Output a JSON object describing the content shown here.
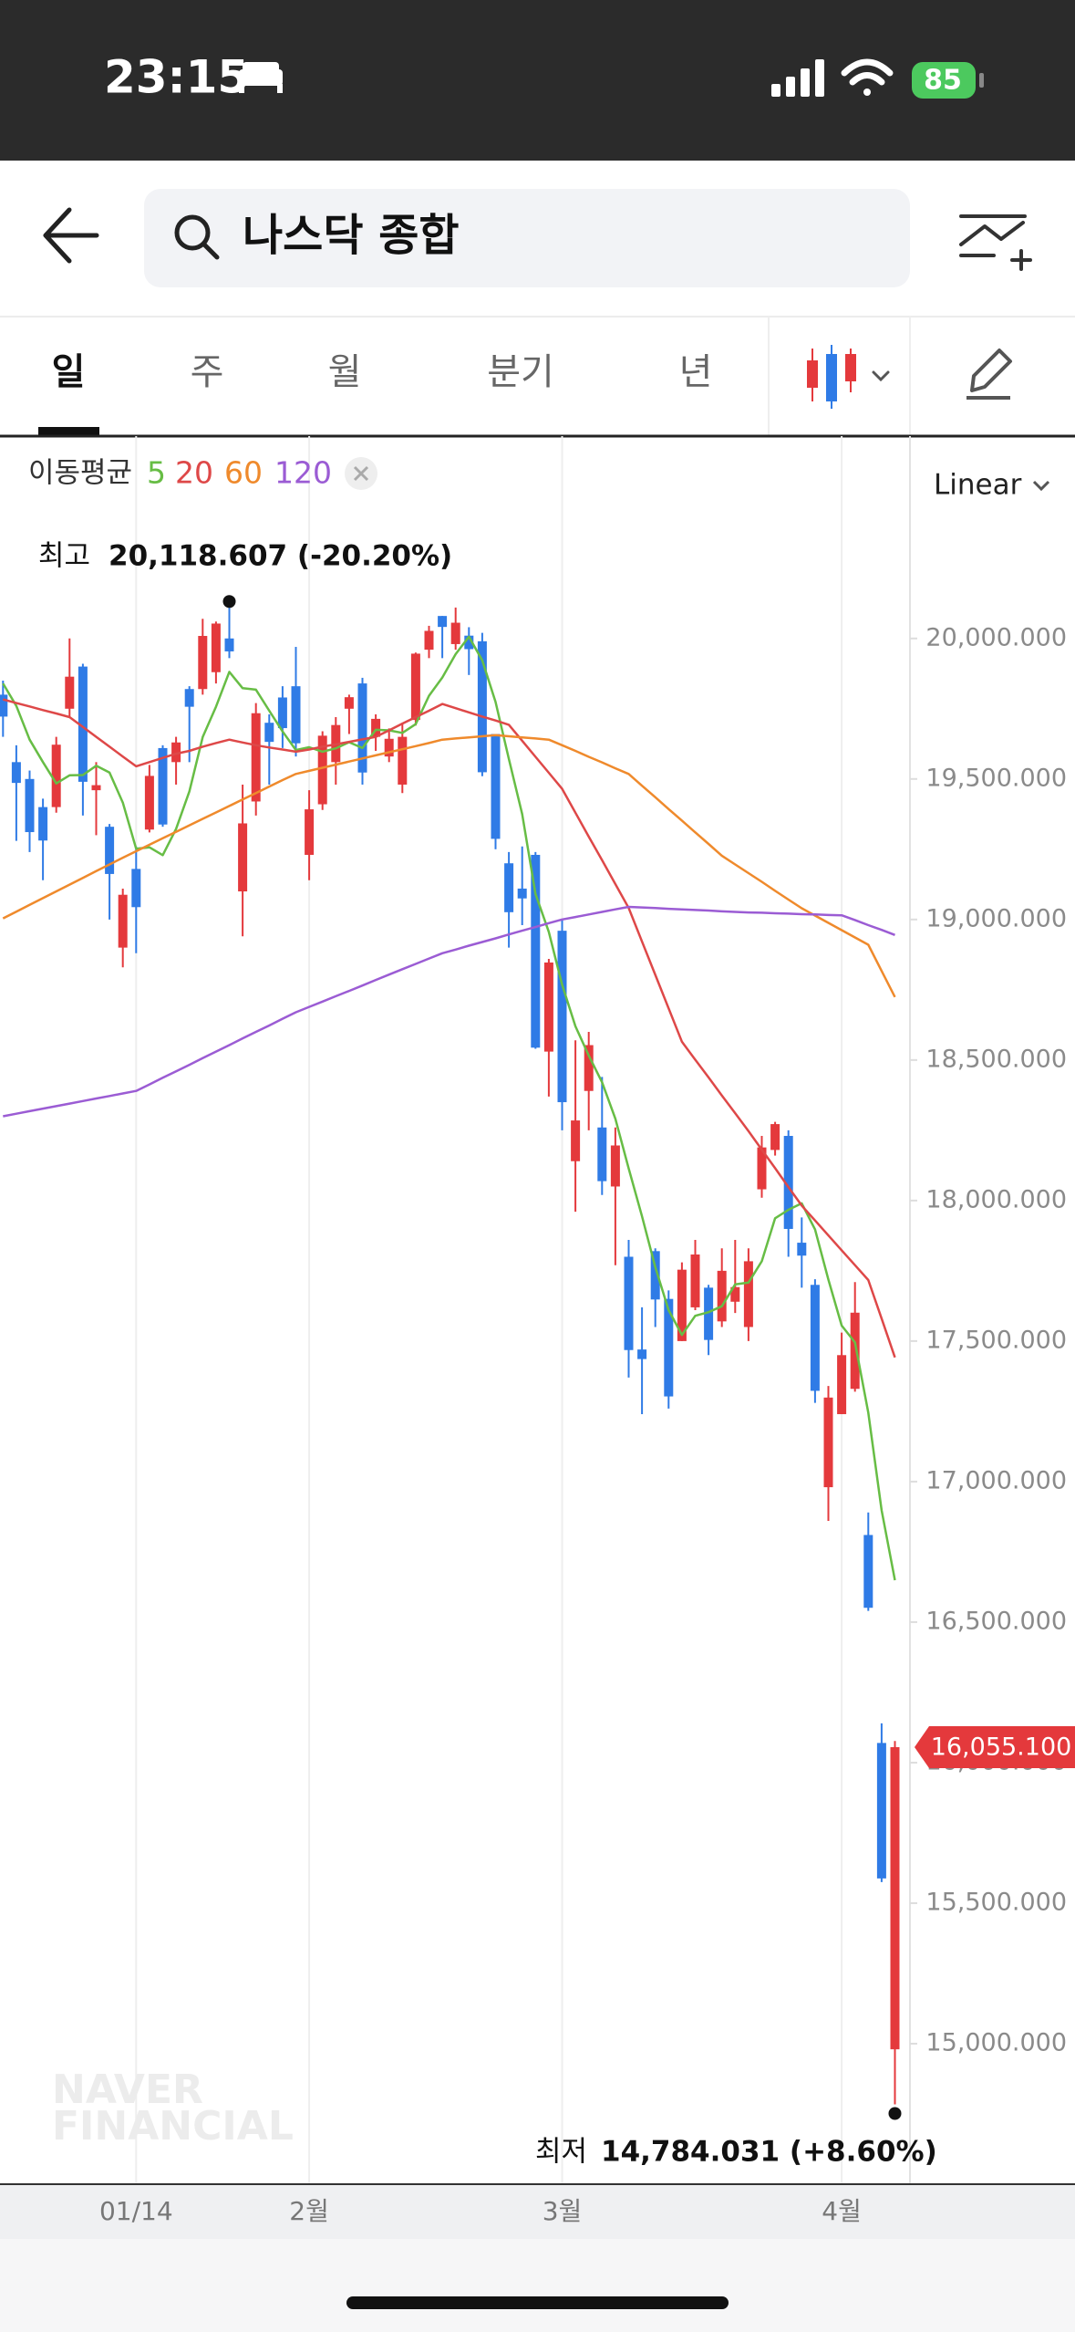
{
  "status_bar": {
    "time": "23:15",
    "battery": "85"
  },
  "search": {
    "query": "나스닥 종합"
  },
  "tabs": [
    "일",
    "주",
    "월",
    "분기",
    "년"
  ],
  "chart_data": {
    "type": "candlestick",
    "scale": "Linear",
    "ma_title": "이동평균",
    "watermark": [
      "NAVER",
      "FINANCIAL"
    ],
    "categories": [
      null,
      null,
      null,
      null,
      null,
      null,
      null,
      null,
      null,
      null,
      "01/14",
      null,
      null,
      null,
      null,
      null,
      null,
      null,
      null,
      null,
      null,
      null,
      null,
      "2월",
      null,
      null,
      null,
      null,
      null,
      null,
      null,
      null,
      null,
      null,
      null,
      null,
      null,
      null,
      null,
      null,
      null,
      null,
      "3월",
      null,
      null,
      null,
      null,
      null,
      null,
      null,
      null,
      null,
      null,
      null,
      null,
      null,
      null,
      null,
      null,
      null,
      null,
      null,
      null,
      "4월",
      null,
      null,
      null,
      null
    ],
    "up_color": "#e4393c",
    "down_color": "#2f7be6",
    "open": [
      19800,
      19560,
      19500,
      19400,
      19400,
      19750,
      19900,
      19460,
      19330,
      18900,
      19180,
      19320,
      19610,
      19560,
      19820,
      19820,
      19880,
      20000,
      19100,
      19420,
      19700,
      19790,
      19830,
      19230,
      19410,
      19560,
      19750,
      19840,
      19650,
      19580,
      19480,
      19710,
      19960,
      20080,
      19980,
      20010,
      19990,
      19660,
      19200,
      19110,
      19230,
      18530,
      18960,
      18140,
      18390,
      18260,
      18050,
      17800,
      17470,
      17820,
      17650,
      17500,
      17620,
      17690,
      17570,
      17640,
      17550,
      18040,
      18180,
      18230,
      17850,
      17700,
      16980,
      17240,
      17330,
      16810,
      16070,
      14980
    ],
    "high": [
      19850,
      19620,
      19530,
      19430,
      19650,
      20000,
      19910,
      19560,
      19340,
      19110,
      19260,
      19550,
      19620,
      19650,
      19830,
      20070,
      20060,
      20118.607,
      19480,
      19770,
      19730,
      19830,
      19970,
      19460,
      19670,
      19720,
      19800,
      19860,
      19730,
      19680,
      19700,
      19950,
      20045,
      20080,
      20110,
      20040,
      20020,
      19660,
      19240,
      19260,
      19240,
      18860,
      19000,
      18570,
      18600,
      18440,
      18260,
      17860,
      17620,
      17830,
      17680,
      17780,
      17860,
      17700,
      17830,
      17860,
      17830,
      18230,
      18280,
      18250,
      17940,
      17720,
      17340,
      17530,
      17710,
      16890,
      16140,
      16077
    ],
    "low": [
      19650,
      19280,
      19240,
      19140,
      19380,
      19720,
      19370,
      19300,
      19000,
      18830,
      18880,
      19310,
      19330,
      19480,
      19560,
      19800,
      19840,
      19930,
      18940,
      19370,
      19480,
      19610,
      19580,
      19140,
      19390,
      19480,
      19660,
      19480,
      19600,
      19560,
      19450,
      19690,
      19930,
      19930,
      19960,
      19870,
      19510,
      19250,
      18900,
      18980,
      18540,
      18370,
      18250,
      17960,
      18250,
      18020,
      17770,
      17370,
      17240,
      17550,
      17260,
      17500,
      17610,
      17450,
      17550,
      17600,
      17500,
      18010,
      18160,
      17800,
      17690,
      17280,
      16860,
      17240,
      17320,
      16540,
      15575,
      14784.031
    ],
    "close": [
      19722,
      19486,
      19311,
      19281,
      19622,
      19864,
      19490,
      19478,
      19162,
      19088,
      19044,
      19511,
      19338,
      19630,
      19757,
      20009,
      20053,
      19954,
      19342,
      19734,
      19632,
      19681,
      19627,
      19392,
      19654,
      19692,
      19791,
      19523,
      19714,
      19643,
      19650,
      19946,
      20027,
      20041,
      20056,
      19962,
      19524,
      19287,
      19026,
      19075,
      18544,
      18847,
      18350,
      18285,
      18553,
      18069,
      18196,
      17468,
      17436,
      17648,
      17303,
      17754,
      17808,
      17504,
      17750,
      17692,
      17784,
      18189,
      18272,
      17899,
      17804,
      17323,
      17299,
      17450,
      17601,
      16551,
      15588,
      16055.1
    ],
    "series": [
      {
        "name": "5",
        "color": "#67bd45",
        "values": [
          19840,
          19760,
          19640,
          19560,
          19484,
          19513,
          19514,
          19547,
          19523,
          19416,
          19252,
          19257,
          19229,
          19322,
          19456,
          19649,
          19757,
          19881,
          19823,
          19818,
          19743,
          19669,
          19603,
          19613,
          19597,
          19609,
          19631,
          19610,
          19675,
          19673,
          19664,
          19695,
          19796,
          19861,
          19944,
          20006,
          19922,
          19774,
          19571,
          19375,
          19091,
          18956,
          18768,
          18620,
          18516,
          18421,
          18291,
          18114,
          17944,
          17763,
          17610,
          17522,
          17590,
          17603,
          17624,
          17702,
          17708,
          17784,
          17937,
          17967,
          17990,
          17897,
          17719,
          17555,
          17495,
          17245,
          16898,
          16649
        ]
      },
      {
        "name": "20",
        "color": "#de4848",
        "values": [
          19783,
          19770,
          19758,
          19745,
          19733,
          19720,
          19685,
          19650,
          19615,
          19580,
          19545,
          19560,
          19575,
          19590,
          19600,
          19615,
          19628,
          19640,
          19630,
          19620,
          19612,
          19605,
          19597,
          19605,
          19615,
          19623,
          19632,
          19641,
          19650,
          19673,
          19697,
          19720,
          19743,
          19767,
          19752,
          19737,
          19722,
          19708,
          19693,
          19636,
          19579,
          19522,
          19465,
          19380,
          19295,
          19211,
          19126,
          19041,
          18922,
          18803,
          18684,
          18565,
          18501,
          18438,
          18374,
          18311,
          18247,
          18181,
          18115,
          18048,
          17982,
          17929,
          17876,
          17823,
          17770,
          17717,
          17580,
          17442
        ]
      },
      {
        "name": "60",
        "color": "#ef8a2c",
        "values": [
          19004,
          19028,
          19052,
          19076,
          19100,
          19124,
          19148,
          19172,
          19196,
          19220,
          19243,
          19266,
          19289,
          19312,
          19335,
          19358,
          19381,
          19404,
          19427,
          19450,
          19473,
          19496,
          19518,
          19529,
          19540,
          19551,
          19562,
          19573,
          19584,
          19595,
          19606,
          19617,
          19628,
          19640,
          19644,
          19648,
          19652,
          19656,
          19652,
          19648,
          19644,
          19640,
          19620,
          19600,
          19579,
          19559,
          19538,
          19518,
          19476,
          19435,
          19393,
          19352,
          19310,
          19269,
          19227,
          19196,
          19165,
          19134,
          19102,
          19071,
          19040,
          19014,
          18988,
          18962,
          18936,
          18910,
          18817,
          18724
        ]
      },
      {
        "name": "120",
        "color": "#9b5cd4",
        "values": [
          18300,
          18309,
          18318,
          18327,
          18336,
          18345,
          18354,
          18363,
          18372,
          18381,
          18390,
          18413,
          18437,
          18460,
          18483,
          18507,
          18530,
          18553,
          18577,
          18600,
          18623,
          18647,
          18670,
          18689,
          18708,
          18727,
          18746,
          18765,
          18785,
          18804,
          18823,
          18842,
          18861,
          18880,
          18893,
          18907,
          18920,
          18933,
          18947,
          18960,
          18973,
          18987,
          19000,
          19009,
          19018,
          19027,
          19036,
          19045,
          19043,
          19041,
          19038,
          19036,
          19034,
          19032,
          19029,
          19027,
          19025,
          19024,
          19022,
          19021,
          19019,
          19018,
          19016,
          19015,
          18998,
          18980,
          18963,
          18945
        ]
      }
    ],
    "ylim": [
      14500,
      20720
    ],
    "yticks": [
      {
        "value": 15000,
        "label": "15,000.000"
      },
      {
        "value": 15500,
        "label": "15,500.000"
      },
      {
        "value": 16000,
        "label": "16,000.000"
      },
      {
        "value": 16500,
        "label": "16,500.000"
      },
      {
        "value": 17000,
        "label": "17,000.000"
      },
      {
        "value": 17500,
        "label": "17,500.000"
      },
      {
        "value": 18000,
        "label": "18,000.000"
      },
      {
        "value": 18500,
        "label": "18,500.000"
      },
      {
        "value": 19000,
        "label": "19,000.000"
      },
      {
        "value": 19500,
        "label": "19,500.000"
      },
      {
        "value": 20000,
        "label": "20,000.000"
      }
    ],
    "high_marker": {
      "label": "최고",
      "text": "20,118.607 (-20.20%)"
    },
    "low_marker": {
      "label": "최저",
      "text": "14,784.031 (+8.60%)"
    },
    "current_price": {
      "value": 16055.1,
      "label": "16,055.100"
    }
  }
}
